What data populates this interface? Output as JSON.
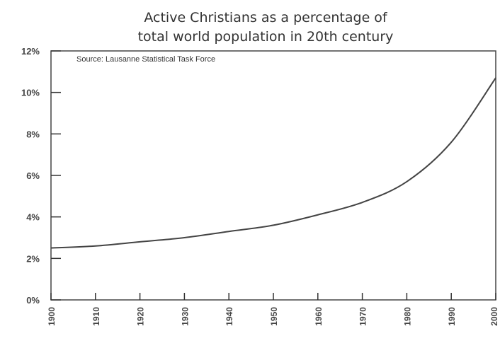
{
  "chart_data": {
    "type": "line",
    "title_lines": [
      "Active Christians as a percentage of",
      "total world population in 20th century"
    ],
    "source": "Source: Lausanne Statistical Task Force",
    "xlabel": "",
    "ylabel": "",
    "x_ticks": [
      "1900",
      "1910",
      "1920",
      "1930",
      "1940",
      "1950",
      "1960",
      "1970",
      "1980",
      "1990",
      "2000"
    ],
    "y_ticks": [
      "0%",
      "2%",
      "4%",
      "6%",
      "8%",
      "10%",
      "12%"
    ],
    "xlim": [
      1900,
      2000
    ],
    "ylim": [
      0,
      12
    ],
    "grid": false,
    "x": [
      1900,
      1910,
      1920,
      1930,
      1940,
      1950,
      1960,
      1970,
      1980,
      1990,
      2000
    ],
    "series": [
      {
        "values": [
          2.5,
          2.6,
          2.8,
          3.0,
          3.3,
          3.6,
          4.1,
          4.7,
          5.7,
          7.6,
          10.7
        ]
      }
    ],
    "colors": {
      "line": "#444444",
      "axis": "#333333",
      "text": "#444444"
    }
  }
}
